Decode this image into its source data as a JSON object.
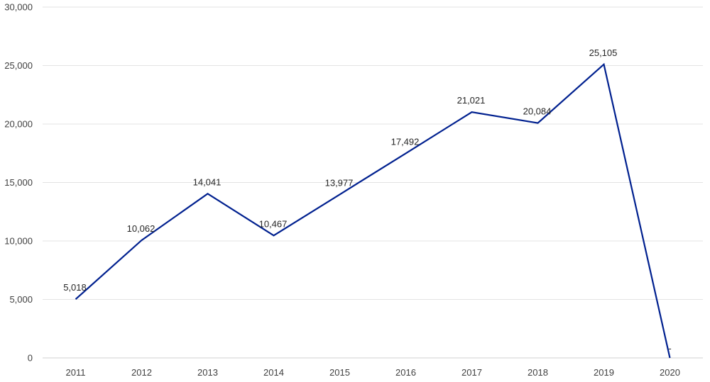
{
  "chart_data": {
    "type": "line",
    "title": "",
    "xlabel": "",
    "ylabel": "",
    "categories": [
      "2011",
      "2012",
      "2013",
      "2014",
      "2015",
      "2016",
      "2017",
      "2018",
      "2019",
      "2020"
    ],
    "series": [
      {
        "values": [
          5018,
          10062,
          14041,
          10467,
          13977,
          17492,
          21021,
          20084,
          25105,
          0
        ],
        "labels": [
          "5,018",
          "10,062",
          "14,041",
          "10,467",
          "13,977",
          "17,492",
          "21,021",
          "20,084",
          "25,105",
          "-"
        ],
        "color": "#00208f"
      }
    ],
    "ylim": [
      0,
      30000
    ],
    "yticks": [
      0,
      5000,
      10000,
      15000,
      20000,
      25000,
      30000
    ],
    "ytick_labels": [
      "0",
      "5,000",
      "10,000",
      "15,000",
      "20,000",
      "25,000",
      "30,000"
    ],
    "grid": true,
    "legend": "none"
  }
}
